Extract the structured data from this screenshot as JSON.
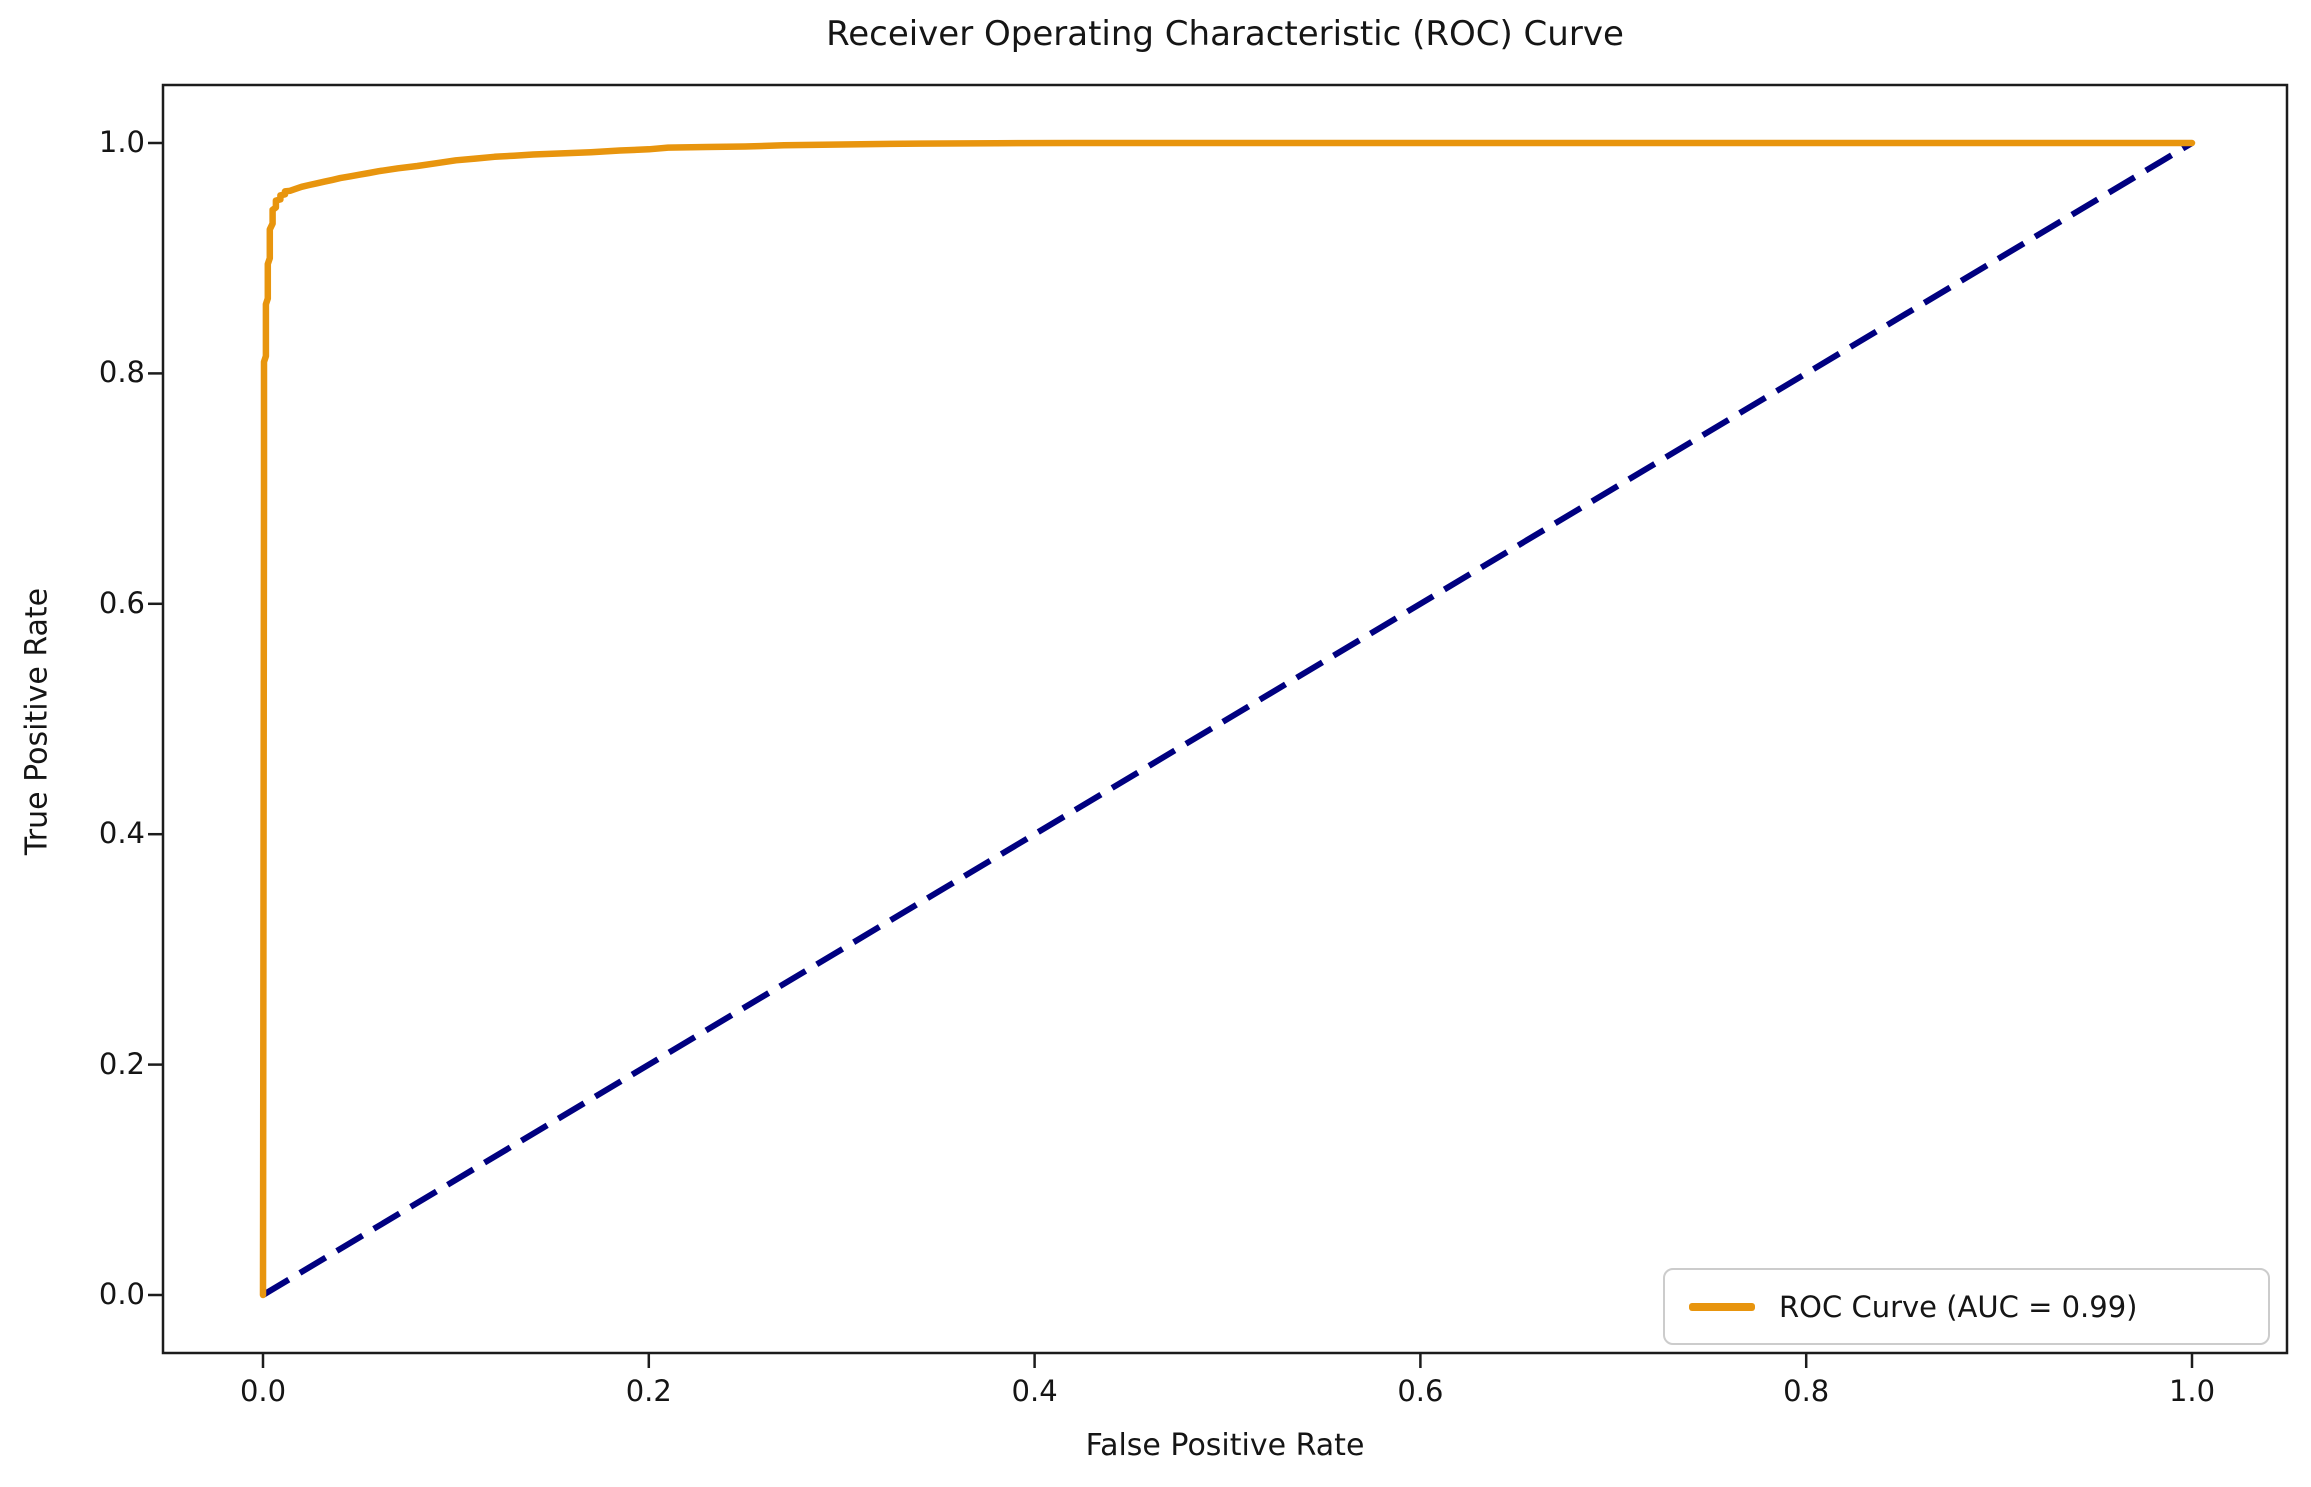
{
  "figure": {
    "title": "Receiver Operating Characteristic (ROC) Curve",
    "xlabel": "False Positive Rate",
    "ylabel": "True Positive Rate"
  },
  "legend": {
    "position": "lower right",
    "items": [
      {
        "label": "ROC Curve (AUC = 0.99)",
        "color": "#e8950e",
        "linestyle": "solid"
      }
    ]
  },
  "colors": {
    "roc_curve": "#e8950e",
    "chance_diagonal": "#000080",
    "spine": "#1c1c1c",
    "text": "#151515"
  },
  "chart_data": {
    "type": "line",
    "title": "Receiver Operating Characteristic (ROC) Curve",
    "xlabel": "False Positive Rate",
    "ylabel": "True Positive Rate",
    "xlim": [
      -0.052,
      1.052
    ],
    "ylim": [
      -0.053,
      1.053
    ],
    "grid": false,
    "legend_position": "lower right",
    "x_ticks": [
      0.0,
      0.2,
      0.4,
      0.6,
      0.8,
      1.0
    ],
    "x_tick_labels": [
      "0.0",
      "0.2",
      "0.4",
      "0.6",
      "0.8",
      "1.0"
    ],
    "y_ticks": [
      0.0,
      0.2,
      0.4,
      0.6,
      0.8,
      1.0
    ],
    "y_tick_labels": [
      "0.0",
      "0.2",
      "0.4",
      "0.6",
      "0.8",
      "1.0"
    ],
    "auc": 0.99,
    "series": [
      {
        "name": "ROC Curve (AUC = 0.99)",
        "color": "#e8950e",
        "linestyle": "solid",
        "linewidth": 6.5,
        "points": [
          [
            0.0,
            0.0
          ],
          [
            0.0005,
            0.7
          ],
          [
            0.0005,
            0.81
          ],
          [
            0.0015,
            0.815
          ],
          [
            0.0015,
            0.86
          ],
          [
            0.0025,
            0.865
          ],
          [
            0.0025,
            0.895
          ],
          [
            0.0035,
            0.9
          ],
          [
            0.0035,
            0.925
          ],
          [
            0.005,
            0.93
          ],
          [
            0.005,
            0.942
          ],
          [
            0.0067,
            0.944
          ],
          [
            0.0067,
            0.95
          ],
          [
            0.009,
            0.951
          ],
          [
            0.009,
            0.9545
          ],
          [
            0.0114,
            0.9555
          ],
          [
            0.0114,
            0.958
          ],
          [
            0.014,
            0.9585
          ],
          [
            0.0166,
            0.96
          ],
          [
            0.02,
            0.962
          ],
          [
            0.024,
            0.9635
          ],
          [
            0.028,
            0.965
          ],
          [
            0.032,
            0.9665
          ],
          [
            0.036,
            0.968
          ],
          [
            0.04,
            0.9695
          ],
          [
            0.045,
            0.971
          ],
          [
            0.05,
            0.9725
          ],
          [
            0.055,
            0.974
          ],
          [
            0.06,
            0.9755
          ],
          [
            0.07,
            0.978
          ],
          [
            0.08,
            0.98
          ],
          [
            0.09,
            0.9825
          ],
          [
            0.1,
            0.985
          ],
          [
            0.11,
            0.9865
          ],
          [
            0.12,
            0.988
          ],
          [
            0.13,
            0.989
          ],
          [
            0.14,
            0.99
          ],
          [
            0.155,
            0.991
          ],
          [
            0.17,
            0.992
          ],
          [
            0.185,
            0.9935
          ],
          [
            0.2,
            0.9945
          ],
          [
            0.21,
            0.996
          ],
          [
            0.23,
            0.9965
          ],
          [
            0.25,
            0.997
          ],
          [
            0.27,
            0.998
          ],
          [
            0.29,
            0.9985
          ],
          [
            0.31,
            0.999
          ],
          [
            0.34,
            0.9995
          ],
          [
            0.38,
            0.9998
          ],
          [
            0.42,
            1.0
          ],
          [
            1.0,
            1.0
          ]
        ]
      },
      {
        "name": "chance-diagonal",
        "color": "#000080",
        "linestyle": "dashed",
        "linewidth": 6,
        "points": [
          [
            0.0,
            0.0
          ],
          [
            1.0,
            1.0
          ]
        ]
      }
    ]
  }
}
